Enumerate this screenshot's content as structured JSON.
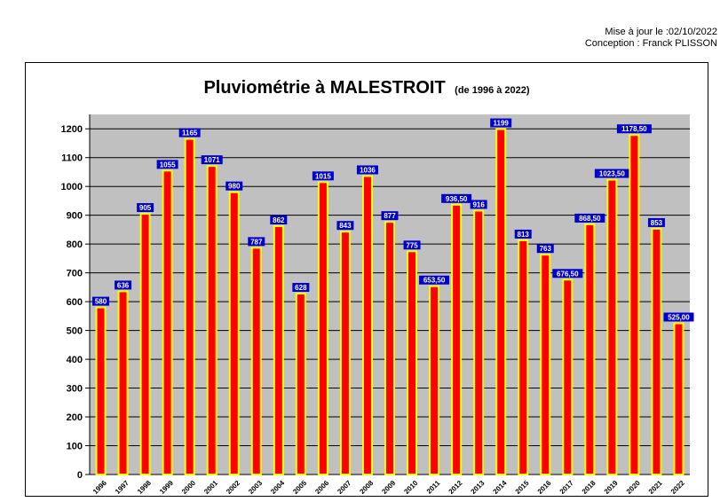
{
  "header": {
    "update_line": "Mise à jour le :02/10/2022",
    "author_line": "Conception : Franck PLISSON"
  },
  "chart_data": {
    "type": "bar",
    "title": "Pluviométrie à MALESTROIT",
    "subtitle": "(de 1996 à 2022)",
    "categories": [
      "1996",
      "1997",
      "1998",
      "1999",
      "2000",
      "2001",
      "2002",
      "2003",
      "2004",
      "2005",
      "2006",
      "2007",
      "2008",
      "2009",
      "2010",
      "2011",
      "2012",
      "2013",
      "2014",
      "2015",
      "2016",
      "2017",
      "2018",
      "2019",
      "2020",
      "2021",
      "2022"
    ],
    "values": [
      580,
      636,
      905,
      1055,
      1165,
      1071,
      980,
      787,
      862,
      628,
      1015,
      843,
      1036,
      877,
      775,
      653.5,
      936.5,
      916,
      1199,
      813,
      763,
      676.5,
      868.5,
      1023.5,
      1178.5,
      853,
      525
    ],
    "value_labels": [
      "580",
      "636",
      "905",
      "1055",
      "1165",
      "1071",
      "980",
      "787",
      "862",
      "628",
      "1015",
      "843",
      "1036",
      "877",
      "775",
      "653,50",
      "936,50",
      "916",
      "1199",
      "813",
      "763",
      "676,50",
      "868,50",
      "1023,50",
      "1178,50",
      "853",
      "525,00"
    ],
    "ylim": [
      0,
      1250
    ],
    "yticks": [
      0,
      100,
      200,
      300,
      400,
      500,
      600,
      700,
      800,
      900,
      1000,
      1100,
      1200
    ],
    "grid": true,
    "colors": {
      "bar_fill": "#ff0000",
      "bar_border": "#ffff00",
      "plot_background": "#c0c0c0",
      "label_background": "#0000cc",
      "label_text": "#ffffff"
    }
  }
}
